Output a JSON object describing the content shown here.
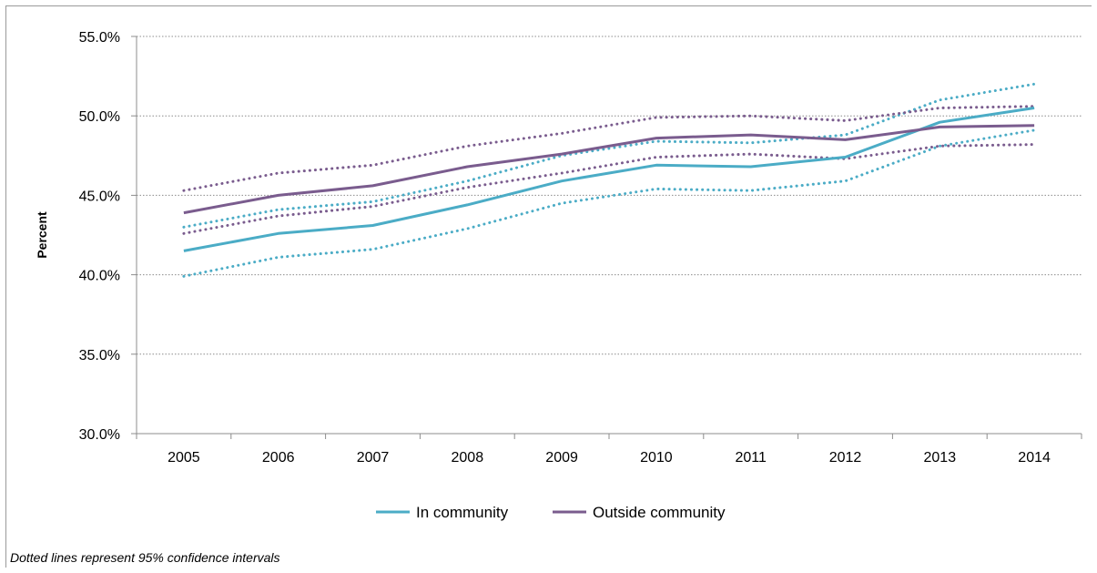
{
  "chart_data": {
    "type": "line",
    "title": "",
    "xlabel": "",
    "ylabel": "Percent",
    "ylim": [
      30,
      55
    ],
    "yticks": [
      "55.0%",
      "50.0%",
      "45.0%",
      "40.0%",
      "35.0%",
      "30.0%"
    ],
    "ytick_values": [
      55,
      50,
      45,
      40,
      35,
      30
    ],
    "categories": [
      "2005",
      "2006",
      "2007",
      "2008",
      "2009",
      "2010",
      "2011",
      "2012",
      "2013",
      "2014"
    ],
    "grid": "horizontal dotted",
    "legend_position": "bottom",
    "series": [
      {
        "name": "In community",
        "color": "#4bacc6",
        "values": [
          41.5,
          42.6,
          43.1,
          44.4,
          45.9,
          46.9,
          46.8,
          47.4,
          49.6,
          50.5
        ],
        "ci_lower": [
          39.9,
          41.1,
          41.6,
          42.9,
          44.5,
          45.4,
          45.3,
          45.9,
          48.1,
          49.1
        ],
        "ci_upper": [
          43.0,
          44.1,
          44.6,
          45.9,
          47.5,
          48.4,
          48.3,
          48.8,
          51.0,
          52.0
        ]
      },
      {
        "name": "Outside community",
        "color": "#7a5c8e",
        "values": [
          43.9,
          45.0,
          45.6,
          46.8,
          47.6,
          48.6,
          48.8,
          48.5,
          49.3,
          49.4
        ],
        "ci_lower": [
          42.6,
          43.7,
          44.3,
          45.5,
          46.4,
          47.4,
          47.6,
          47.3,
          48.1,
          48.2
        ],
        "ci_upper": [
          45.3,
          46.4,
          46.9,
          48.1,
          48.9,
          49.9,
          50.0,
          49.7,
          50.5,
          50.6
        ]
      }
    ]
  },
  "footnote": "Dotted lines represent 95% confidence intervals"
}
